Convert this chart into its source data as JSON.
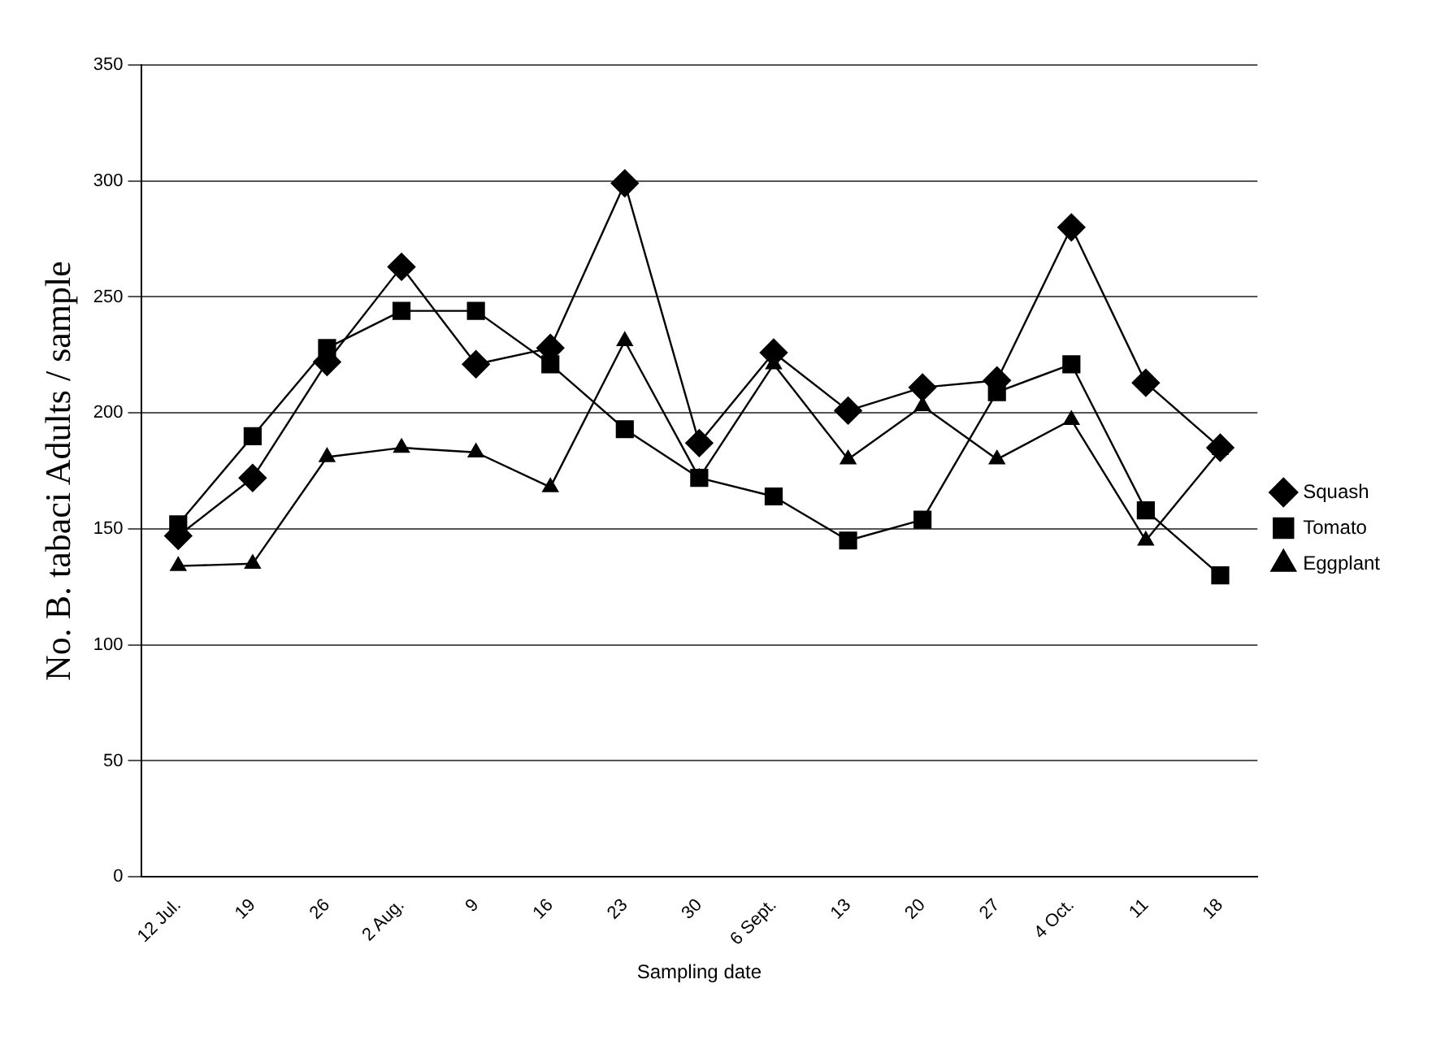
{
  "chart_data": {
    "type": "line",
    "xlabel": "Sampling date",
    "ylabel": "No. B. tabaci Adults / sample",
    "categories": [
      "12 Jul.",
      "19",
      "26",
      "2 Aug.",
      "9",
      "16",
      "23",
      "30",
      "6 Sept.",
      "13",
      "20",
      "27",
      "4 Oct.",
      "11",
      "18"
    ],
    "series": [
      {
        "name": "Squash",
        "color": "#000000",
        "marker": "diamond",
        "values": [
          147,
          172,
          222,
          263,
          221,
          228,
          299,
          187,
          226,
          201,
          211,
          214,
          280,
          213,
          185
        ]
      },
      {
        "name": "Tomato",
        "color": "#000000",
        "marker": "square",
        "values": [
          152,
          190,
          228,
          244,
          244,
          221,
          193,
          172,
          164,
          145,
          154,
          209,
          221,
          158,
          130
        ]
      },
      {
        "name": "Eggplant",
        "color": "#000000",
        "marker": "triangle",
        "values": [
          134,
          135,
          181,
          185,
          183,
          168,
          231,
          172,
          221,
          180,
          203,
          180,
          197,
          145,
          184
        ]
      }
    ],
    "ylim": [
      0,
      350
    ],
    "yticks": [
      0,
      50,
      100,
      150,
      200,
      250,
      300,
      350
    ],
    "grid": "y",
    "legend": "right"
  }
}
